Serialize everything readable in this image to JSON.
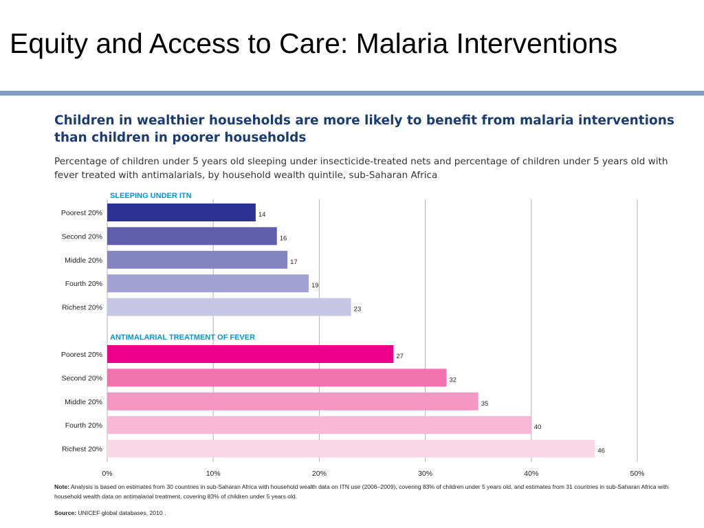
{
  "slide": {
    "title": "Equity and Access to Care: Malaria Interventions",
    "rule_color": "#7f9bbd"
  },
  "figure": {
    "heading": "Children in wealthier households are more likely to benefit from malaria interventions than children in poorer households",
    "subtitle": "Percentage of children under 5 years old sleeping under insecticide-treated nets and percentage of children under 5 years old with fever treated with antimalarials, by household wealth quintile, sub-Saharan Africa",
    "heading_color": "#1a3c72",
    "note_label": "Note:",
    "note_text": "Analysis is based on estimates from 30 countries in sub-Saharan Africa with household wealth data on ITN use (2006–2009), covering 83% of children under 5 years old, and estimates from 31 countries in sub-Saharan Africa with household wealth data on antimalarial treatment, covering 83% of children under 5 years old.",
    "source_label": "Source:",
    "source_text": "UNICEF global databases, 2010 ."
  },
  "chart_data": {
    "type": "bar",
    "orientation": "horizontal",
    "categories": [
      "Poorest 20%",
      "Second 20%",
      "Middle 20%",
      "Fourth 20%",
      "Richest 20%"
    ],
    "series": [
      {
        "name": "SLEEPING UNDER ITN",
        "values": [
          14,
          16,
          17,
          19,
          23
        ],
        "colors": [
          "#2e3092",
          "#5e5eab",
          "#8484c0",
          "#a4a2d2",
          "#c7c6e5"
        ],
        "label_color": "#0096d6"
      },
      {
        "name": "ANTIMALARIAL TREATMENT OF FEVER",
        "values": [
          27,
          32,
          35,
          40,
          46
        ],
        "colors": [
          "#ec008c",
          "#f173ad",
          "#f497c2",
          "#f8b9d6",
          "#fbd8e8"
        ],
        "label_color": "#0096d6"
      }
    ],
    "x_ticks": [
      "0%",
      "10%",
      "20%",
      "30%",
      "40%",
      "50%"
    ],
    "xlim": [
      0,
      50
    ],
    "grid": true,
    "xlabel": "",
    "ylabel": ""
  }
}
